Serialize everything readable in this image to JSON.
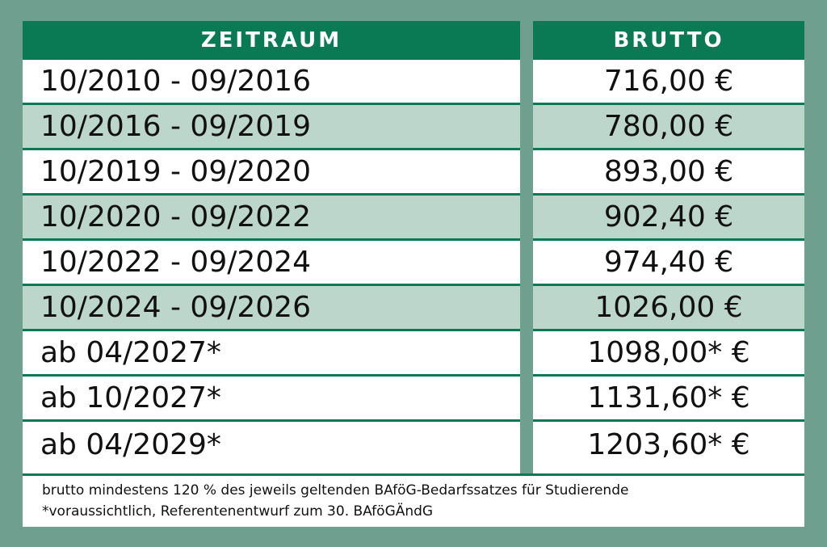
{
  "table": {
    "headers": {
      "period": "ZEITRAUM",
      "gross": "BRUTTO"
    },
    "rows": [
      {
        "period": "10/2010 - 09/2016",
        "gross": "716,00 €"
      },
      {
        "period": "10/2016 - 09/2019",
        "gross": "780,00 €"
      },
      {
        "period": "10/2019 - 09/2020",
        "gross": "893,00 €"
      },
      {
        "period": "10/2020 - 09/2022",
        "gross": "902,40 €"
      },
      {
        "period": "10/2022 - 09/2024",
        "gross": "974,40 €"
      },
      {
        "period": "10/2024 - 09/2026",
        "gross": "1026,00 €"
      },
      {
        "period": "ab 04/2027*",
        "gross": "1098,00* €"
      },
      {
        "period": "ab 10/2027*",
        "gross": "1131,60* €"
      },
      {
        "period": "ab 04/2029*",
        "gross": "1203,60* €"
      }
    ]
  },
  "footer": {
    "note1": "brutto mindestens 120 % des jeweils geltenden BAföG-Bedarfssatzes für Studierende",
    "note2": "*voraussichtlich, Referentenentwurf zum 30. BAföGÄndG"
  },
  "colors": {
    "background": "#6fa08f",
    "header": "#0a7a55",
    "alt_row": "#bdd6cc"
  }
}
